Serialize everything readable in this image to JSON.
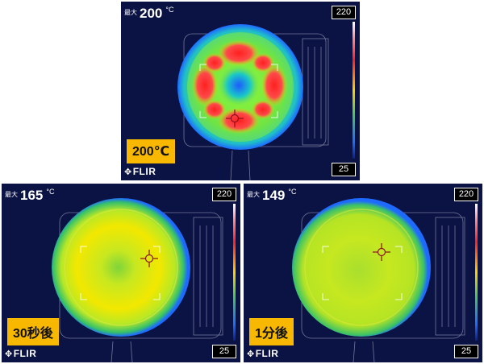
{
  "panels": [
    {
      "id": "p1",
      "max_label": "最大",
      "max_value": "200",
      "unit": "°C",
      "scale_max": "220",
      "scale_min": "25",
      "caption": "200℃",
      "logo": "FLIR",
      "state": "hot"
    },
    {
      "id": "p2",
      "max_label": "最大",
      "max_value": "165",
      "unit": "°C",
      "scale_max": "220",
      "scale_min": "25",
      "caption": "30秒後",
      "logo": "FLIR",
      "state": "warm"
    },
    {
      "id": "p3",
      "max_label": "最大",
      "max_value": "149",
      "unit": "°C",
      "scale_max": "220",
      "scale_min": "25",
      "caption": "1分後",
      "logo": "FLIR",
      "state": "cool"
    }
  ],
  "colors": {
    "background": "#0b1244",
    "caption_bg": "#f8b800",
    "hot_red": "#ff2a2a",
    "yellow": "#e6f000",
    "green": "#4fcf4a",
    "cyan": "#19c8c8",
    "blue": "#1e5bff"
  }
}
